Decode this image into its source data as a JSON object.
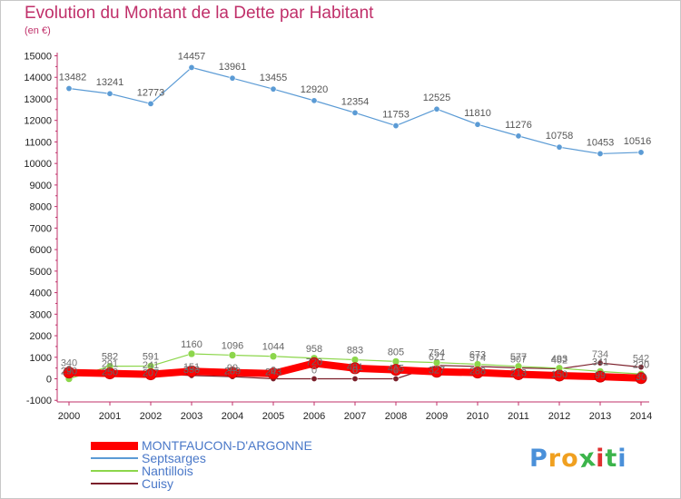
{
  "chart_data": {
    "type": "line",
    "title": "Evolution du Montant de la Dette par Habitant",
    "subtitle": "(en €)",
    "x": [
      "2000",
      "2001",
      "2002",
      "2003",
      "2004",
      "2005",
      "2006",
      "2007",
      "2008",
      "2009",
      "2010",
      "2011",
      "2012",
      "2013",
      "2014"
    ],
    "ylim": [
      -1000,
      15000
    ],
    "yticks": [
      "-1000",
      "0",
      "1000",
      "2000",
      "3000",
      "4000",
      "5000",
      "6000",
      "7000",
      "8000",
      "9000",
      "10000",
      "11000",
      "12000",
      "13000",
      "14000",
      "15000"
    ],
    "grid": false,
    "legend_position": "bottom-left",
    "series": [
      {
        "name": "MONTFAUCON-D'ARGONNE",
        "color": "#ff0000",
        "values": [
          290,
          250,
          207,
          350,
          289,
          243,
          720,
          491,
          415,
          327,
          288,
          213,
          150,
          99,
          30
        ]
      },
      {
        "name": "Septsarges",
        "color": "#5b9bd5",
        "values": [
          13482,
          13241,
          12773,
          14457,
          13961,
          13455,
          12920,
          12354,
          11753,
          12525,
          11810,
          11276,
          10758,
          10453,
          10516
        ]
      },
      {
        "name": "Nantillois",
        "color": "#8cd64b",
        "values": [
          0,
          582,
          591,
          1160,
          1096,
          1044,
          958,
          883,
          805,
          754,
          673,
          577,
          493,
          341,
          220
        ]
      },
      {
        "name": "Cuisy",
        "color": "#7b1f2a",
        "values": [
          340,
          291,
          241,
          151,
          99,
          0,
          0,
          0,
          0,
          621,
          574,
          507,
          462,
          734,
          542
        ]
      }
    ]
  },
  "brand": {
    "letters": [
      "P",
      "r",
      "o",
      "x",
      "i",
      "t",
      "i"
    ],
    "colors": [
      "#4a90d9",
      "#f0a020",
      "#f0a020",
      "#3cb44b",
      "#e03030",
      "#3cb44b",
      "#4a90d9"
    ]
  }
}
